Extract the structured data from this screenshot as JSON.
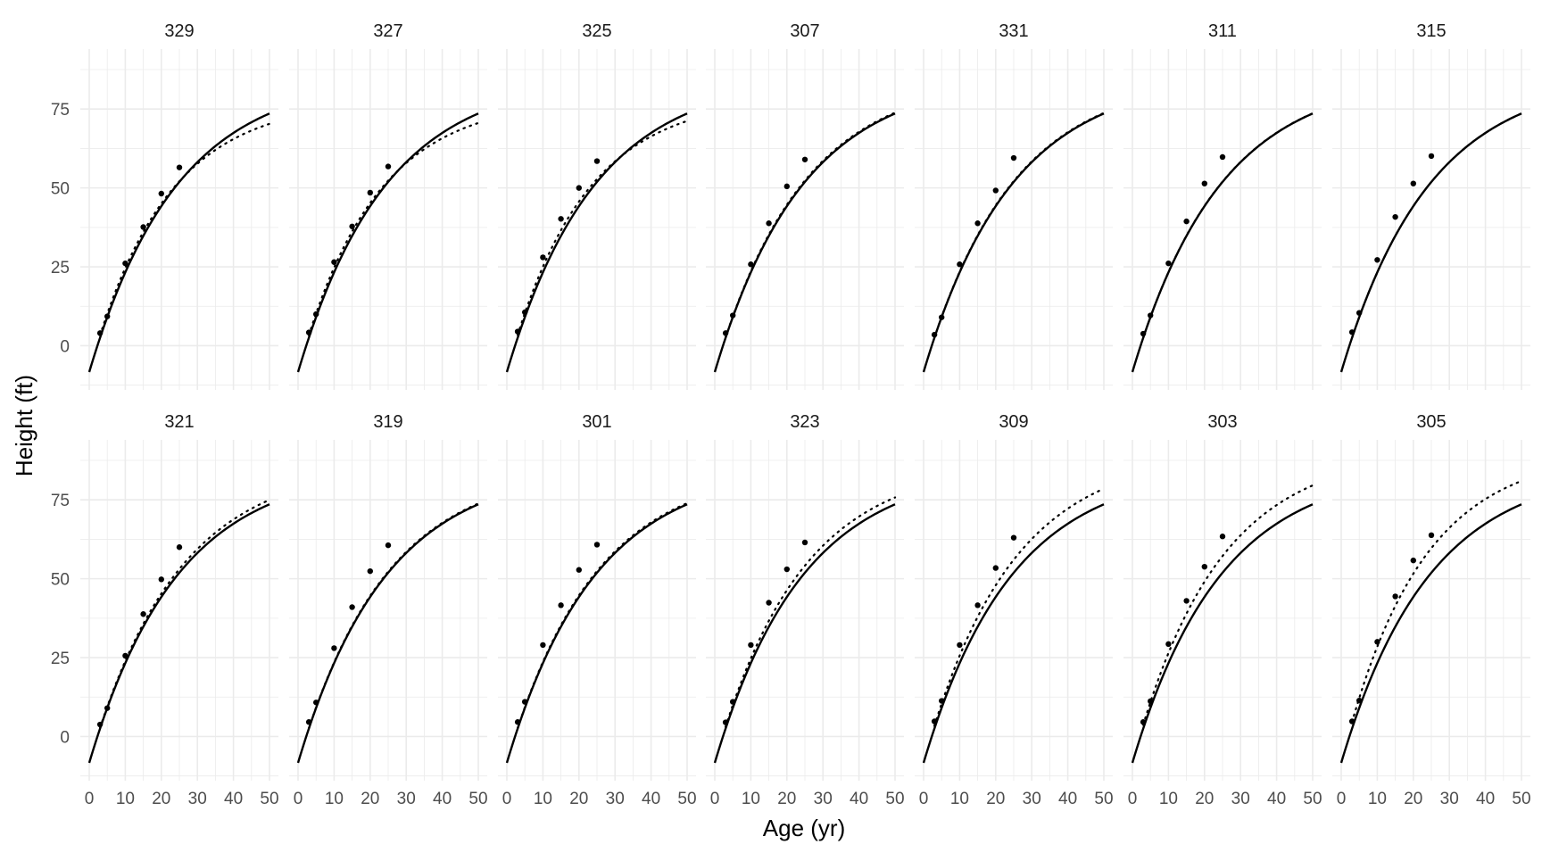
{
  "chart_data": {
    "type": "line",
    "xlabel": "Age (yr)",
    "ylabel": "Height (ft)",
    "xlim": [
      0,
      50
    ],
    "ylim": [
      -14,
      94
    ],
    "xticks": [
      0,
      10,
      20,
      30,
      40,
      50
    ],
    "yticks": [
      0,
      25,
      50,
      75
    ],
    "grid": true,
    "legend": "none",
    "colors": {
      "line": "#000000",
      "grid": "#ebebeb",
      "points": "#000000"
    },
    "ages": [
      3,
      5,
      10,
      15,
      20,
      25
    ],
    "fixed_curve": {
      "asymptote": 94.1,
      "rate": 0.0409,
      "offset": 8.35
    },
    "facets": [
      {
        "label": "329",
        "heights": [
          4.0,
          9.3,
          26.1,
          37.6,
          48.2,
          56.5
        ],
        "asymptote": 86.5,
        "rate": 0.048,
        "offset": 8.35
      },
      {
        "label": "327",
        "heights": [
          4.2,
          10.0,
          26.5,
          37.8,
          48.5,
          56.8
        ],
        "asymptote": 86.8,
        "rate": 0.048,
        "offset": 8.35
      },
      {
        "label": "325",
        "heights": [
          4.5,
          10.6,
          28.0,
          40.2,
          50.0,
          58.5
        ],
        "asymptote": 87.5,
        "rate": 0.048,
        "offset": 8.35
      },
      {
        "label": "307",
        "heights": [
          4.0,
          9.6,
          25.8,
          38.8,
          50.5,
          59.0
        ],
        "asymptote": 94.0,
        "rate": 0.0415,
        "offset": 8.35
      },
      {
        "label": "331",
        "heights": [
          3.5,
          9.0,
          25.8,
          38.8,
          49.2,
          59.5
        ],
        "asymptote": 94.1,
        "rate": 0.0412,
        "offset": 8.35
      },
      {
        "label": "311",
        "heights": [
          3.8,
          9.6,
          26.1,
          39.4,
          51.4,
          59.8
        ],
        "asymptote": 94.1,
        "rate": 0.041,
        "offset": 8.35
      },
      {
        "label": "315",
        "heights": [
          4.3,
          10.4,
          27.2,
          40.8,
          51.4,
          60.1
        ],
        "asymptote": 94.1,
        "rate": 0.0409,
        "offset": 8.35
      },
      {
        "label": "321",
        "heights": [
          3.8,
          9.0,
          25.6,
          38.8,
          49.8,
          60.0
        ],
        "asymptote": 95.5,
        "rate": 0.0412,
        "offset": 8.35
      },
      {
        "label": "319",
        "heights": [
          4.6,
          10.8,
          28.0,
          41.0,
          52.4,
          60.6
        ],
        "asymptote": 94.1,
        "rate": 0.0413,
        "offset": 8.35
      },
      {
        "label": "301",
        "heights": [
          4.6,
          11.0,
          29.0,
          41.6,
          52.8,
          60.8
        ],
        "asymptote": 94.1,
        "rate": 0.0415,
        "offset": 8.35
      },
      {
        "label": "323",
        "heights": [
          4.5,
          11.0,
          29.0,
          42.4,
          53.0,
          61.5
        ],
        "asymptote": 95.5,
        "rate": 0.0425,
        "offset": 8.35
      },
      {
        "label": "309",
        "heights": [
          4.8,
          11.3,
          29.0,
          41.6,
          53.4,
          63.0
        ],
        "asymptote": 99.0,
        "rate": 0.042,
        "offset": 8.35
      },
      {
        "label": "303",
        "heights": [
          4.6,
          11.2,
          29.3,
          43.0,
          53.8,
          63.4
        ],
        "asymptote": 99.5,
        "rate": 0.043,
        "offset": 8.35
      },
      {
        "label": "305",
        "heights": [
          4.8,
          11.4,
          30.0,
          44.4,
          55.8,
          63.8
        ],
        "asymptote": 99.0,
        "rate": 0.0465,
        "offset": 8.35
      }
    ]
  }
}
